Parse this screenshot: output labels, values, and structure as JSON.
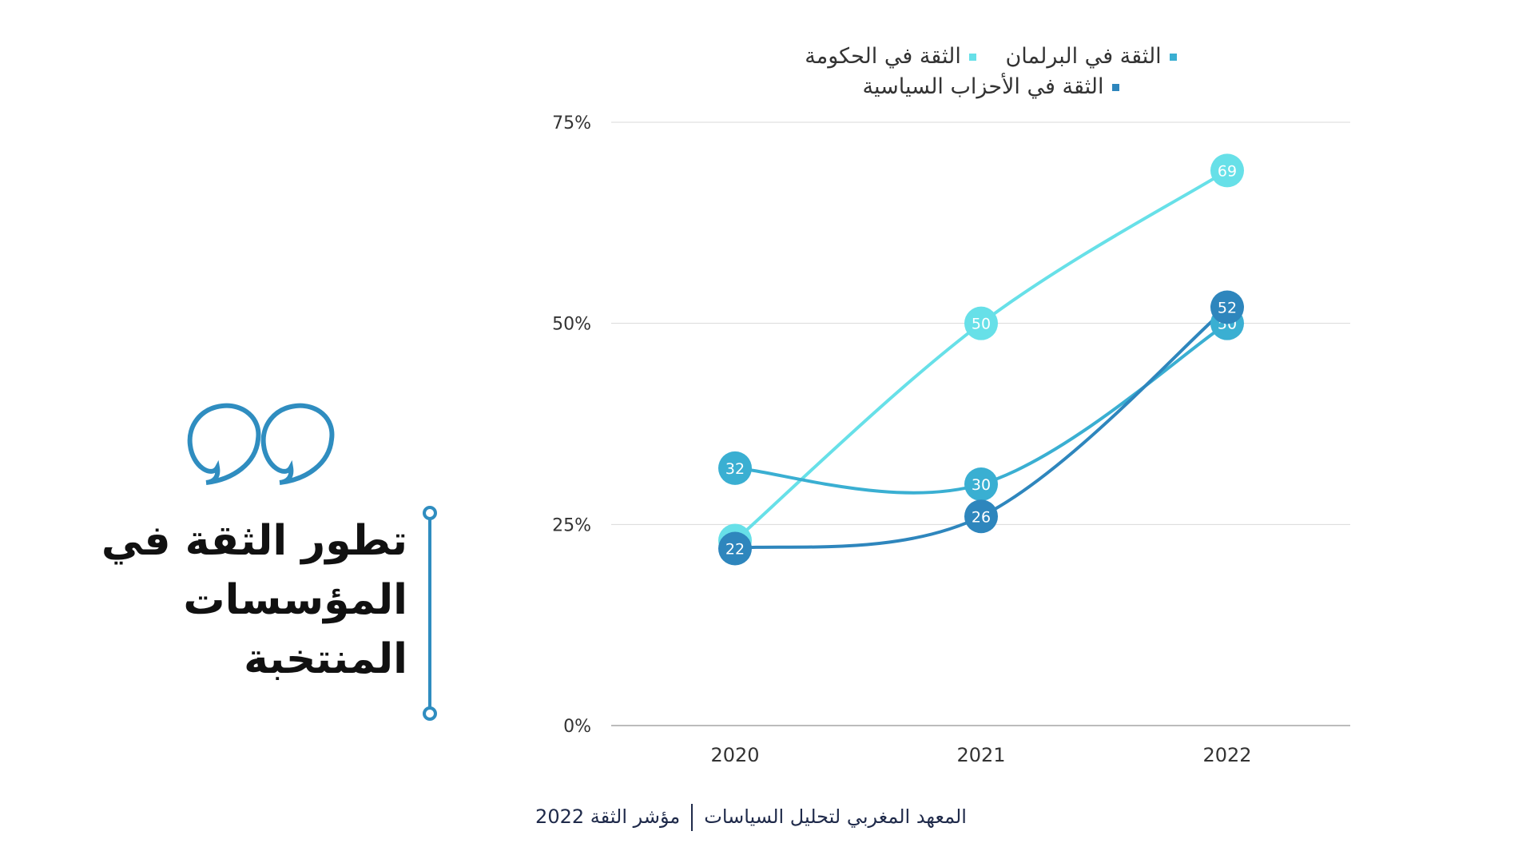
{
  "title_lines": [
    "تطور الثقة في",
    "المؤسسات",
    "المنتخبة"
  ],
  "footer": {
    "institution": "المعهد المغربي لتحليل السياسات",
    "report": "مؤشر الثقة 2022"
  },
  "colors": {
    "government": "#67E0E8",
    "parliament": "#3AAFD2",
    "parties": "#2E86BD",
    "accent": "#2F8DC0",
    "grid": "#d9d9d9",
    "axis": "#a6a6a6",
    "tick_text": "#333333"
  },
  "icons": {
    "quote": "quote-icon"
  },
  "chart_data": {
    "type": "line",
    "categories": [
      "2020",
      "2021",
      "2022"
    ],
    "ylim": [
      0,
      75
    ],
    "yticks": [
      {
        "value": 0,
        "label": "0%"
      },
      {
        "value": 25,
        "label": "25%"
      },
      {
        "value": 50,
        "label": "50%"
      },
      {
        "value": 75,
        "label": "75%"
      }
    ],
    "grid": true,
    "legend_position": "top",
    "xlabel": "",
    "ylabel": "",
    "series": [
      {
        "key": "government",
        "name": "الثقة في الحكومة",
        "values": [
          23,
          50,
          69
        ],
        "labels": [
          "",
          "50",
          "69"
        ]
      },
      {
        "key": "parliament",
        "name": "الثقة في البرلمان",
        "values": [
          32,
          30,
          50
        ],
        "labels": [
          "32",
          "30",
          "50"
        ]
      },
      {
        "key": "parties",
        "name": "الثقة في الأحزاب السياسية",
        "values": [
          22,
          26,
          52
        ],
        "labels": [
          "22",
          "26",
          "52"
        ]
      }
    ]
  }
}
